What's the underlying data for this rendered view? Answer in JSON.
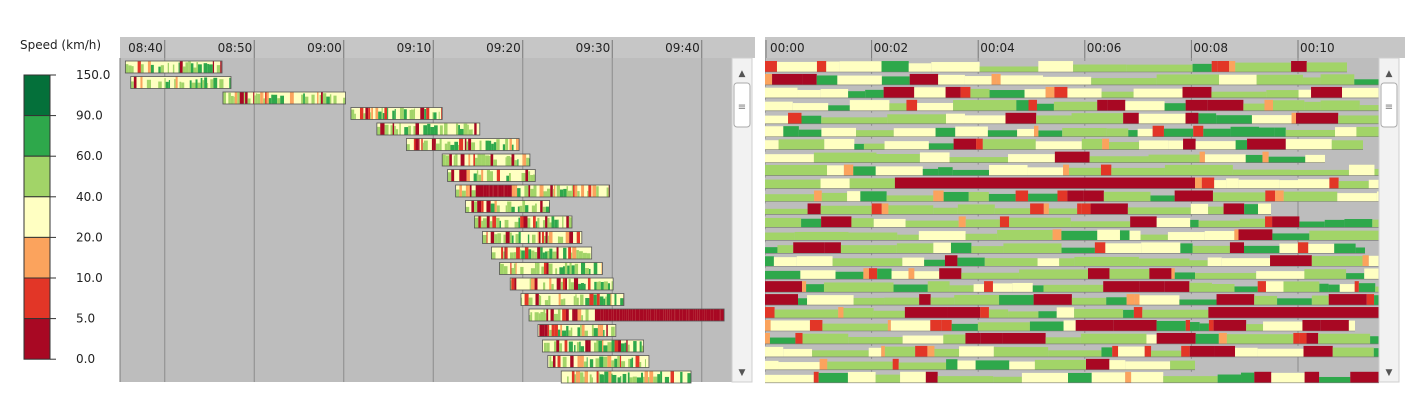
{
  "legend": {
    "title": "Speed (km/h)",
    "labels": [
      "150.0",
      "90.0",
      "60.0",
      "40.0",
      "20.0",
      "10.0",
      "5.0",
      "0.0"
    ],
    "colors": [
      "#04703a",
      "#2ea84b",
      "#a2d468",
      "#ffffc2",
      "#fba35d",
      "#e23627",
      "#a80823"
    ]
  },
  "chart_data": [
    {
      "type": "gantt",
      "name": "absolute-time",
      "x_ticks": [
        "08:40",
        "08:50",
        "09:00",
        "09:10",
        "09:20",
        "09:30",
        "09:40"
      ],
      "x_unit": "clock time",
      "x_domain_minutes": [
        0,
        64.7
      ],
      "rows": [
        {
          "start": "08:35.6",
          "end": "08:46.4"
        },
        {
          "start": "08:36.2",
          "end": "08:47.4"
        },
        {
          "start": "08:46.5",
          "end": "09:00.2"
        },
        {
          "start": "09:00.8",
          "end": "09:11.0"
        },
        {
          "start": "09:03.7",
          "end": "09:15.2"
        },
        {
          "start": "09:07.0",
          "end": "09:19.6"
        },
        {
          "start": "09:11.0",
          "end": "09:20.8"
        },
        {
          "start": "09:11.6",
          "end": "09:21.4"
        },
        {
          "start": "09:12.5",
          "end": "09:29.7"
        },
        {
          "start": "09:13.6",
          "end": "09:23.0"
        },
        {
          "start": "09:14.6",
          "end": "09:25.5"
        },
        {
          "start": "09:15.5",
          "end": "09:26.6"
        },
        {
          "start": "09:16.5",
          "end": "09:27.7"
        },
        {
          "start": "09:17.4",
          "end": "09:28.9"
        },
        {
          "start": "09:18.6",
          "end": "09:30.1"
        },
        {
          "start": "09:19.8",
          "end": "09:31.3"
        },
        {
          "start": "09:20.7",
          "end": "09:42.5"
        },
        {
          "start": "09:21.7",
          "end": "09:30.4"
        },
        {
          "start": "09:22.2",
          "end": "09:33.5"
        },
        {
          "start": "09:22.8",
          "end": "09:34.1"
        },
        {
          "start": "09:24.3",
          "end": "09:38.8"
        }
      ]
    },
    {
      "type": "gantt",
      "name": "relative-time",
      "x_ticks": [
        "00:00",
        "00:02",
        "00:04",
        "00:06",
        "00:08",
        "00:10"
      ],
      "x_unit": "elapsed hh:mm",
      "rows_count": 25
    }
  ],
  "scrollbar": {
    "up": "▲",
    "down": "▼",
    "grip": "≡"
  }
}
